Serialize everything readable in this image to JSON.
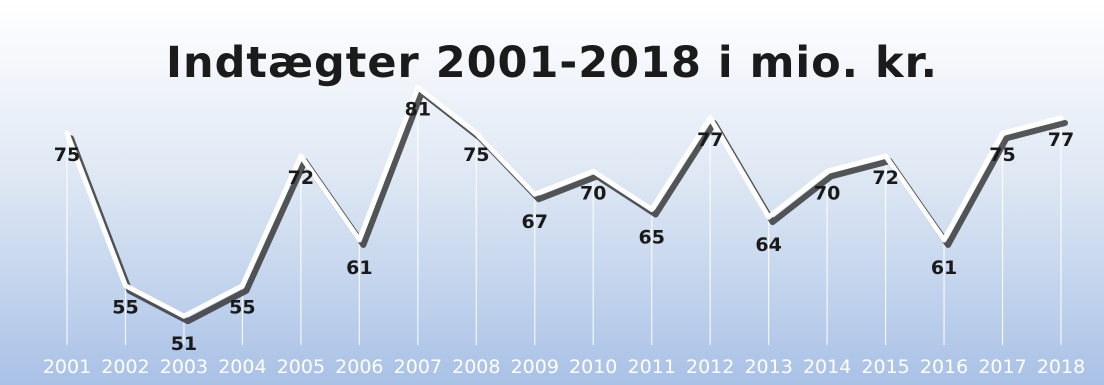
{
  "chart_data": {
    "type": "line",
    "title": "Indtægter 2001-2018 i mio. kr.",
    "xlabel": "",
    "ylabel": "",
    "categories": [
      "2001",
      "2002",
      "2003",
      "2004",
      "2005",
      "2006",
      "2007",
      "2008",
      "2009",
      "2010",
      "2011",
      "2012",
      "2013",
      "2014",
      "2015",
      "2016",
      "2017",
      "2018"
    ],
    "series": [
      {
        "values": [
          75,
          55,
          51,
          55,
          72,
          61,
          81,
          75,
          67,
          70,
          65,
          77,
          64,
          70,
          72,
          61,
          75,
          77
        ]
      }
    ],
    "ylim": [
      40,
      85
    ],
    "grid": false,
    "legend": "none",
    "colors": {
      "line": "#ffffff",
      "shadow": "#3a3a3a",
      "background_bottom": "#a9c1e6",
      "tick_text": "#ffffff",
      "label_text": "#1a1a1a"
    }
  }
}
